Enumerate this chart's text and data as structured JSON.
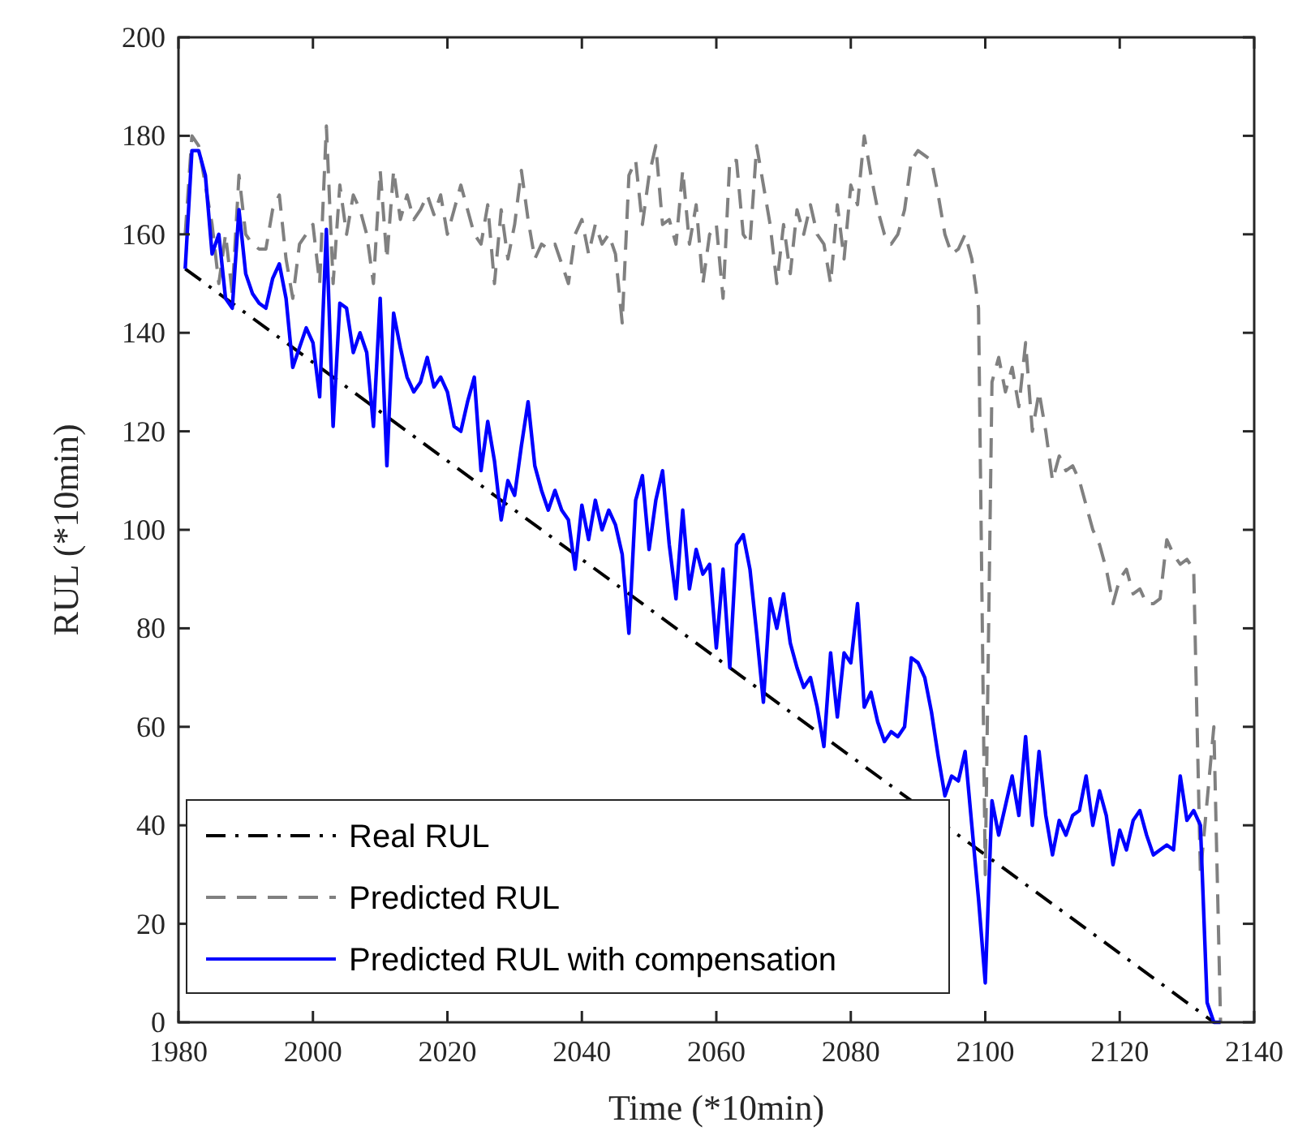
{
  "chart_data": {
    "type": "line",
    "xlabel": "Time (*10min)",
    "ylabel": "RUL (*10min)",
    "xlim": [
      1980,
      2140
    ],
    "xticks": [
      1980,
      2000,
      2020,
      2040,
      2060,
      2080,
      2100,
      2120,
      2140
    ],
    "ylim": [
      0,
      200
    ],
    "yticks": [
      0,
      20,
      40,
      60,
      80,
      100,
      120,
      140,
      160,
      180,
      200
    ],
    "grid": false,
    "legend": "bottom left",
    "marker": "none",
    "series": [
      {
        "name": "Real RUL",
        "color": "#000000",
        "line_style": "dashdot",
        "x": [
          1981,
          2134
        ],
        "values": [
          153,
          0
        ]
      },
      {
        "name": "Predicted RUL",
        "color": "#808080",
        "line_style": "dashed",
        "x": [
          1981,
          1982,
          1983,
          1984,
          1985,
          1986,
          1987,
          1988,
          1989,
          1990,
          1991,
          1992,
          1993,
          1994,
          1995,
          1996,
          1997,
          1998,
          1999,
          2000,
          2001,
          2002,
          2003,
          2004,
          2005,
          2006,
          2007,
          2008,
          2009,
          2010,
          2011,
          2012,
          2013,
          2014,
          2015,
          2016,
          2017,
          2018,
          2019,
          2020,
          2021,
          2022,
          2023,
          2024,
          2025,
          2026,
          2027,
          2028,
          2029,
          2030,
          2031,
          2032,
          2033,
          2034,
          2035,
          2036,
          2037,
          2038,
          2039,
          2040,
          2041,
          2042,
          2043,
          2044,
          2045,
          2046,
          2047,
          2048,
          2049,
          2050,
          2051,
          2052,
          2053,
          2054,
          2055,
          2056,
          2057,
          2058,
          2059,
          2060,
          2061,
          2062,
          2063,
          2064,
          2065,
          2066,
          2067,
          2068,
          2069,
          2070,
          2071,
          2072,
          2073,
          2074,
          2075,
          2076,
          2077,
          2078,
          2079,
          2080,
          2081,
          2082,
          2083,
          2084,
          2085,
          2086,
          2087,
          2088,
          2089,
          2090,
          2091,
          2092,
          2093,
          2094,
          2095,
          2096,
          2097,
          2098,
          2099,
          2100,
          2101,
          2102,
          2103,
          2104,
          2105,
          2106,
          2107,
          2108,
          2109,
          2110,
          2111,
          2112,
          2113,
          2114,
          2115,
          2116,
          2117,
          2118,
          2119,
          2120,
          2121,
          2122,
          2123,
          2124,
          2125,
          2126,
          2127,
          2128,
          2129,
          2130,
          2131,
          2132,
          2133,
          2134,
          2135
        ],
        "values": [
          160,
          180,
          178,
          170,
          162,
          150,
          160,
          148,
          172,
          160,
          158,
          157,
          157,
          165,
          168,
          155,
          147,
          158,
          160,
          162,
          150,
          182,
          150,
          170,
          160,
          168,
          165,
          160,
          150,
          173,
          155,
          173,
          163,
          168,
          163,
          165,
          168,
          164,
          168,
          160,
          165,
          170,
          165,
          160,
          158,
          166,
          150,
          165,
          155,
          162,
          173,
          163,
          155,
          158,
          157,
          158,
          154,
          150,
          160,
          163,
          156,
          162,
          158,
          160,
          156,
          142,
          172,
          175,
          162,
          172,
          178,
          162,
          163,
          158,
          173,
          158,
          166,
          150,
          160,
          162,
          147,
          175,
          175,
          160,
          158,
          178,
          170,
          162,
          150,
          162,
          152,
          165,
          160,
          166,
          160,
          158,
          150,
          166,
          155,
          170,
          166,
          180,
          172,
          165,
          160,
          158,
          160,
          165,
          175,
          177,
          176,
          175,
          168,
          160,
          156,
          157,
          160,
          155,
          145,
          30,
          130,
          135,
          128,
          133,
          125,
          138,
          120,
          128,
          120,
          110,
          115,
          112,
          113,
          110,
          105,
          100,
          97,
          92,
          85,
          90,
          92,
          87,
          88,
          85,
          85,
          86,
          98,
          95,
          93,
          94,
          92,
          30,
          45,
          60,
          0
        ]
      },
      {
        "name": "Predicted RUL with compensation",
        "color": "#0000ff",
        "line_style": "solid",
        "x": [
          1981,
          1982,
          1983,
          1984,
          1985,
          1986,
          1987,
          1988,
          1989,
          1990,
          1991,
          1992,
          1993,
          1994,
          1995,
          1996,
          1997,
          1998,
          1999,
          2000,
          2001,
          2002,
          2003,
          2004,
          2005,
          2006,
          2007,
          2008,
          2009,
          2010,
          2011,
          2012,
          2013,
          2014,
          2015,
          2016,
          2017,
          2018,
          2019,
          2020,
          2021,
          2022,
          2023,
          2024,
          2025,
          2026,
          2027,
          2028,
          2029,
          2030,
          2031,
          2032,
          2033,
          2034,
          2035,
          2036,
          2037,
          2038,
          2039,
          2040,
          2041,
          2042,
          2043,
          2044,
          2045,
          2046,
          2047,
          2048,
          2049,
          2050,
          2051,
          2052,
          2053,
          2054,
          2055,
          2056,
          2057,
          2058,
          2059,
          2060,
          2061,
          2062,
          2063,
          2064,
          2065,
          2066,
          2067,
          2068,
          2069,
          2070,
          2071,
          2072,
          2073,
          2074,
          2075,
          2076,
          2077,
          2078,
          2079,
          2080,
          2081,
          2082,
          2083,
          2084,
          2085,
          2086,
          2087,
          2088,
          2089,
          2090,
          2091,
          2092,
          2093,
          2094,
          2095,
          2096,
          2097,
          2098,
          2099,
          2100,
          2101,
          2102,
          2103,
          2104,
          2105,
          2106,
          2107,
          2108,
          2109,
          2110,
          2111,
          2112,
          2113,
          2114,
          2115,
          2116,
          2117,
          2118,
          2119,
          2120,
          2121,
          2122,
          2123,
          2124,
          2125,
          2126,
          2127,
          2128,
          2129,
          2130,
          2131,
          2132,
          2133,
          2134,
          2135
        ],
        "values": [
          153,
          177,
          177,
          172,
          156,
          160,
          147,
          145,
          165,
          152,
          148,
          146,
          145,
          151,
          154,
          147,
          133,
          137,
          141,
          138,
          127,
          161,
          121,
          146,
          145,
          136,
          140,
          136,
          121,
          147,
          113,
          144,
          137,
          131,
          128,
          130,
          135,
          129,
          131,
          128,
          121,
          120,
          126,
          131,
          112,
          122,
          114,
          102,
          110,
          107,
          117,
          126,
          113,
          108,
          104,
          108,
          104,
          102,
          92,
          105,
          98,
          106,
          100,
          104,
          101,
          95,
          79,
          106,
          111,
          96,
          106,
          112,
          97,
          86,
          104,
          88,
          96,
          91,
          93,
          76,
          92,
          72,
          97,
          99,
          92,
          79,
          65,
          86,
          80,
          87,
          77,
          72,
          68,
          70,
          64,
          56,
          75,
          62,
          75,
          73,
          85,
          64,
          67,
          61,
          57,
          59,
          58,
          60,
          74,
          73,
          70,
          63,
          54,
          46,
          50,
          49,
          55,
          40,
          25,
          8,
          45,
          38,
          44,
          50,
          42,
          58,
          40,
          55,
          42,
          34,
          41,
          38,
          42,
          43,
          50,
          40,
          47,
          42,
          32,
          39,
          35,
          41,
          43,
          38,
          34,
          35,
          36,
          35,
          50,
          41,
          43,
          40,
          4,
          0,
          0
        ]
      }
    ]
  }
}
